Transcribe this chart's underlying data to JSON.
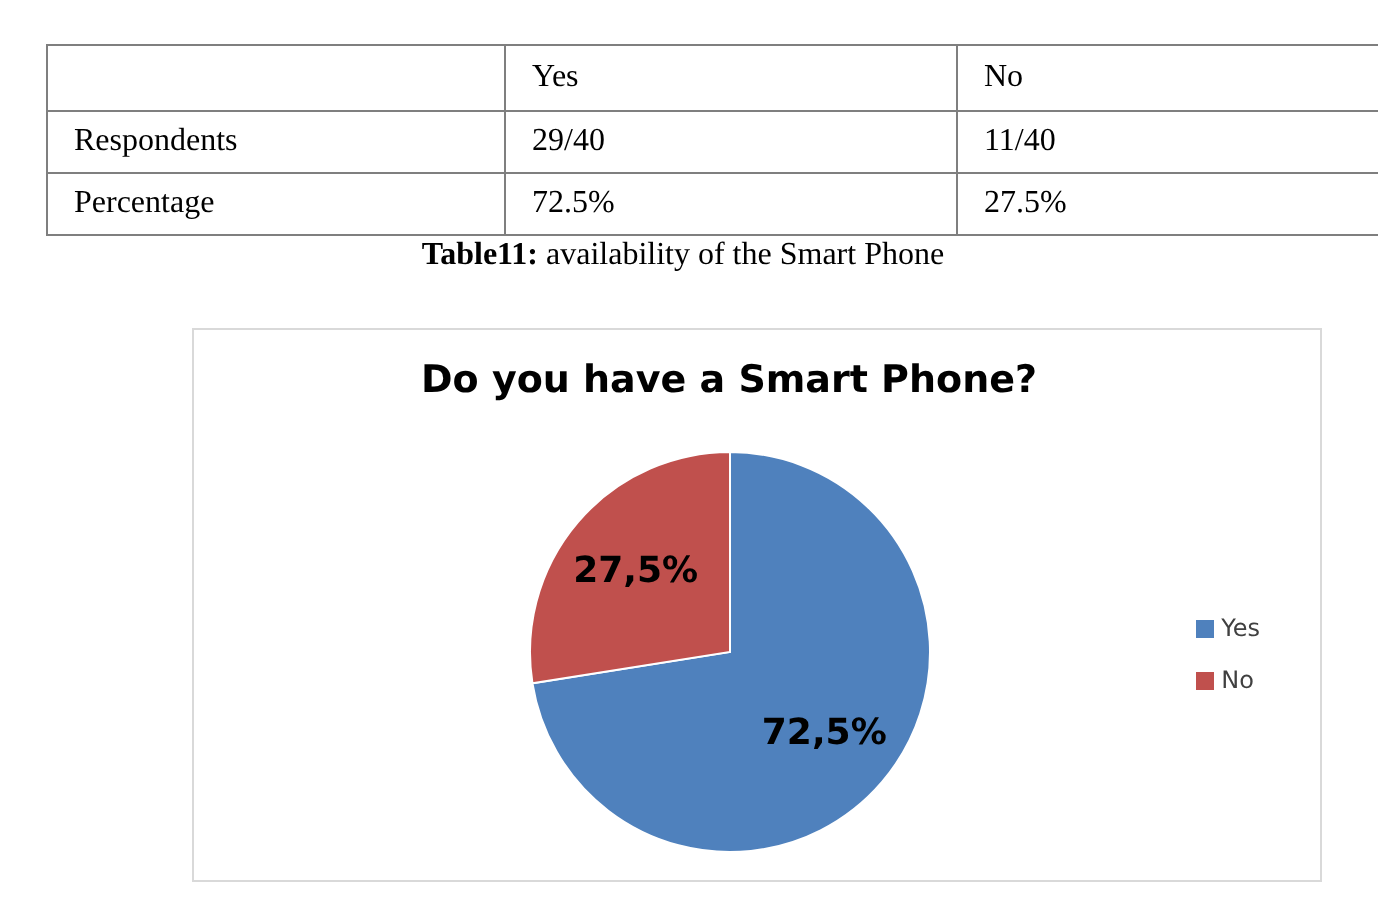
{
  "chart_data": [
    {
      "type": "other",
      "categories": [
        "Yes",
        "No"
      ],
      "y_categories": [
        "Respondents",
        "Percentage"
      ],
      "cell_labels": [
        [
          "29/40",
          "11/40"
        ],
        [
          "72.5%",
          "27.5%"
        ]
      ],
      "annotations": [
        "Table11: availability of the Smart Phone"
      ]
    },
    {
      "type": "pie",
      "title": "Do you have a Smart Phone?",
      "categories": [
        "Yes",
        "No"
      ],
      "values": [
        72.5,
        27.5
      ],
      "colors": [
        "#4f81bd",
        "#c0504d"
      ],
      "value_labels": [
        "72,5%",
        "27,5%"
      ],
      "legend": "right"
    }
  ]
}
